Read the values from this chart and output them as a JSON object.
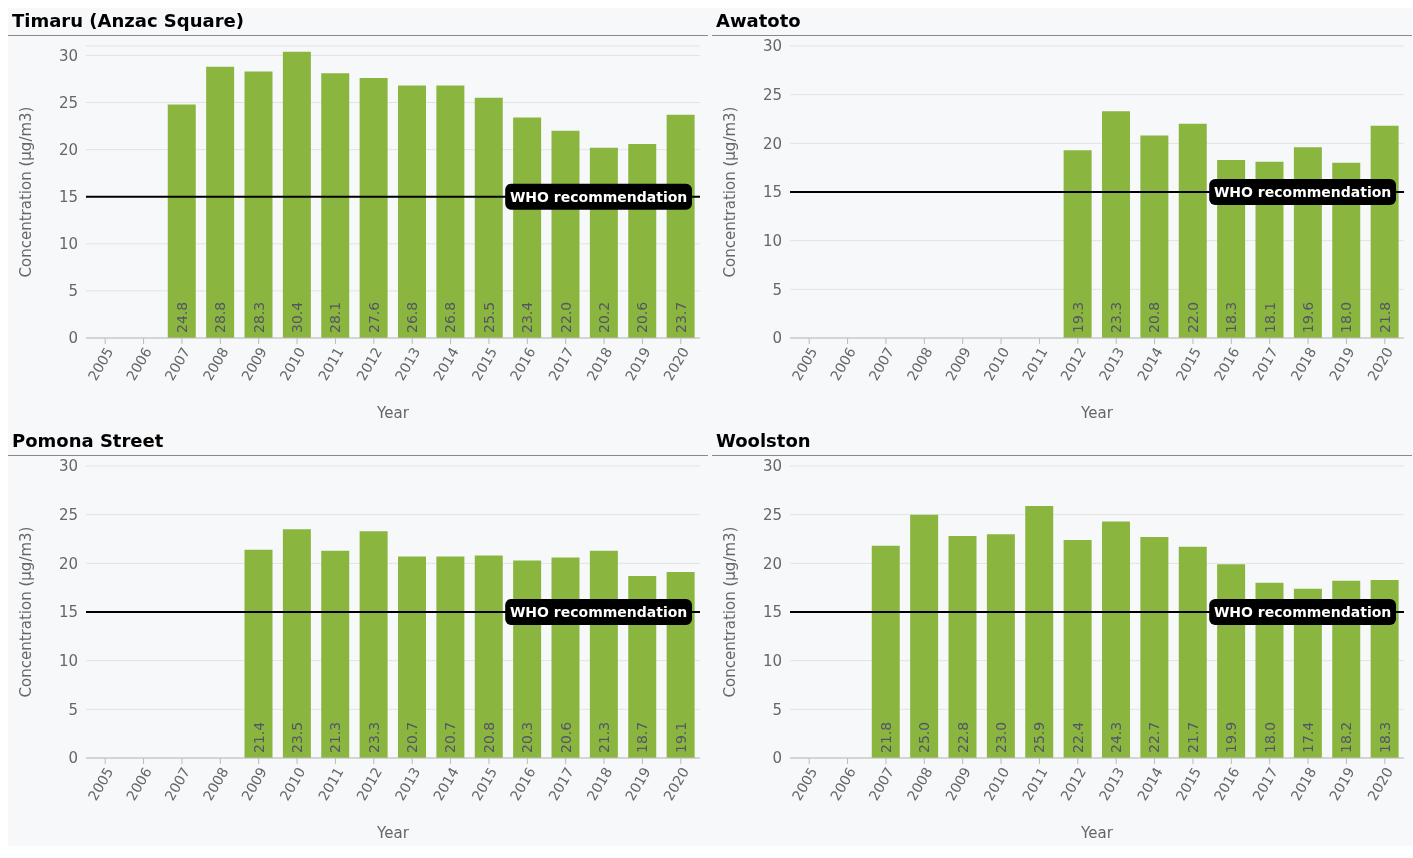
{
  "chart_data": [
    {
      "type": "bar",
      "title": "Timaru (Anzac Square)",
      "xlabel": "Year",
      "ylabel": "Concentration (µg/m3)",
      "categories": [
        "2005",
        "2006",
        "2007",
        "2008",
        "2009",
        "2010",
        "2011",
        "2012",
        "2013",
        "2014",
        "2015",
        "2016",
        "2017",
        "2018",
        "2019",
        "2020"
      ],
      "color": "#8ab63f",
      "values": [
        null,
        null,
        24.8,
        28.8,
        28.3,
        30.4,
        28.1,
        27.6,
        26.8,
        26.8,
        25.5,
        23.4,
        22.0,
        20.2,
        20.6,
        23.7
      ],
      "value_labels": [
        null,
        null,
        "24.8",
        "28.8",
        "28.3",
        "30.4",
        "28.1",
        "27.6",
        "26.8",
        "26.8",
        "25.5",
        "23.4",
        "22.0",
        "20.2",
        "20.6",
        "23.7"
      ],
      "ylim": [
        0,
        31
      ],
      "yticks": [
        0,
        5,
        10,
        15,
        20,
        25,
        30
      ],
      "grid": "y",
      "ref_lines": [
        {
          "axis": "y",
          "value": 15,
          "label": "WHO recommendation",
          "color": "#000000"
        }
      ]
    },
    {
      "type": "bar",
      "title": "Awatoto",
      "xlabel": "Year",
      "ylabel": "Concentration (µg/m3)",
      "categories": [
        "2005",
        "2006",
        "2007",
        "2008",
        "2009",
        "2010",
        "2011",
        "2012",
        "2013",
        "2014",
        "2015",
        "2016",
        "2017",
        "2018",
        "2019",
        "2020"
      ],
      "color": "#8ab63f",
      "values": [
        null,
        null,
        null,
        null,
        null,
        null,
        null,
        19.3,
        23.3,
        20.8,
        22.0,
        18.3,
        18.1,
        19.6,
        18.0,
        21.8
      ],
      "value_labels": [
        null,
        null,
        null,
        null,
        null,
        null,
        null,
        "19.3",
        "23.3",
        "20.8",
        "22.0",
        "18.3",
        "18.1",
        "19.6",
        "18.0",
        "21.8"
      ],
      "ylim": [
        0,
        30
      ],
      "yticks": [
        0,
        5,
        10,
        15,
        20,
        25,
        30
      ],
      "grid": "y",
      "ref_lines": [
        {
          "axis": "y",
          "value": 15,
          "label": "WHO recommendation",
          "color": "#000000"
        }
      ]
    },
    {
      "type": "bar",
      "title": "Pomona Street",
      "xlabel": "Year",
      "ylabel": "Concentration (µg/m3)",
      "categories": [
        "2005",
        "2006",
        "2007",
        "2008",
        "2009",
        "2010",
        "2011",
        "2012",
        "2013",
        "2014",
        "2015",
        "2016",
        "2017",
        "2018",
        "2019",
        "2020"
      ],
      "color": "#8ab63f",
      "values": [
        null,
        null,
        null,
        null,
        21.4,
        23.5,
        21.3,
        23.3,
        20.7,
        20.7,
        20.8,
        20.3,
        20.6,
        21.3,
        18.7,
        19.1
      ],
      "value_labels": [
        null,
        null,
        null,
        null,
        "21.4",
        "23.5",
        "21.3",
        "23.3",
        "20.7",
        "20.7",
        "20.8",
        "20.3",
        "20.6",
        "21.3",
        "18.7",
        "19.1"
      ],
      "ylim": [
        0,
        30
      ],
      "yticks": [
        0,
        5,
        10,
        15,
        20,
        25,
        30
      ],
      "grid": "y",
      "ref_lines": [
        {
          "axis": "y",
          "value": 15,
          "label": "WHO recommendation",
          "color": "#000000"
        }
      ]
    },
    {
      "type": "bar",
      "title": "Woolston",
      "xlabel": "Year",
      "ylabel": "Concentration (µg/m3)",
      "categories": [
        "2005",
        "2006",
        "2007",
        "2008",
        "2009",
        "2010",
        "2011",
        "2012",
        "2013",
        "2014",
        "2015",
        "2016",
        "2017",
        "2018",
        "2019",
        "2020"
      ],
      "color": "#8ab63f",
      "values": [
        null,
        null,
        21.8,
        25.0,
        22.8,
        23.0,
        25.9,
        22.4,
        24.3,
        22.7,
        21.7,
        19.9,
        18.0,
        17.4,
        18.2,
        18.3
      ],
      "value_labels": [
        null,
        null,
        "21.8",
        "25.0",
        "22.8",
        "23.0",
        "25.9",
        "22.4",
        "24.3",
        "22.7",
        "21.7",
        "19.9",
        "18.0",
        "17.4",
        "18.2",
        "18.3"
      ],
      "ylim": [
        0,
        30
      ],
      "yticks": [
        0,
        5,
        10,
        15,
        20,
        25,
        30
      ],
      "grid": "y",
      "ref_lines": [
        {
          "axis": "y",
          "value": 15,
          "label": "WHO recommendation",
          "color": "#000000"
        }
      ]
    }
  ]
}
